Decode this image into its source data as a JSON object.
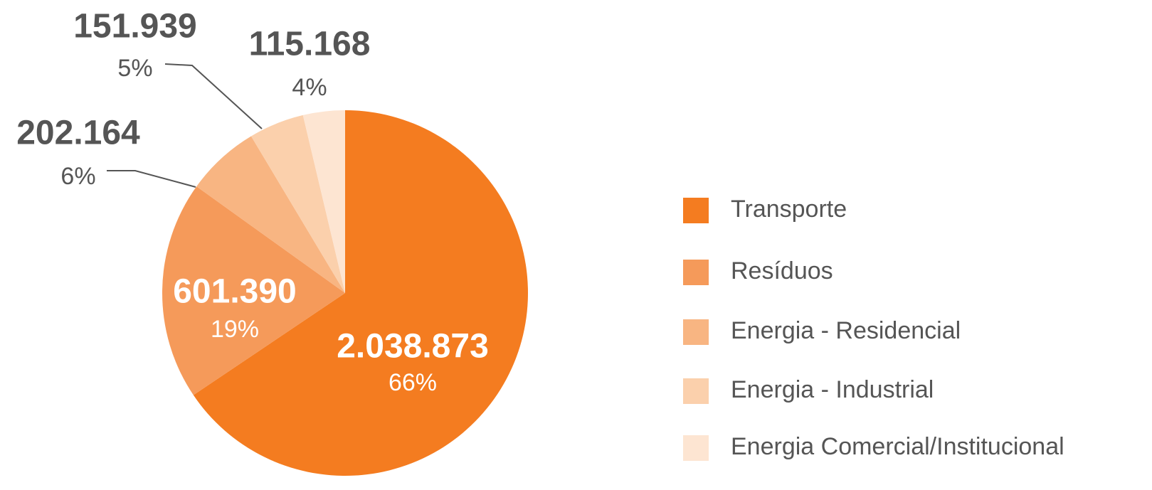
{
  "chart_data": {
    "type": "pie",
    "categories": [
      "Transporte",
      "Resíduos",
      "Energia - Residencial",
      "Energia - Industrial",
      "Energia Comercial/Institucional"
    ],
    "values": [
      2038873,
      601390,
      202164,
      151939,
      115168
    ],
    "value_labels": [
      "2.038.873",
      "601.390",
      "202.164",
      "151.939",
      "115.168"
    ],
    "percents": [
      66,
      19,
      6,
      5,
      4
    ],
    "percent_labels": [
      "66%",
      "19%",
      "6%",
      "5%",
      "4%"
    ],
    "colors": [
      "#f47c20",
      "#f59a5a",
      "#f8b582",
      "#fbd0ac",
      "#fde5d2"
    ],
    "legend": "right"
  }
}
